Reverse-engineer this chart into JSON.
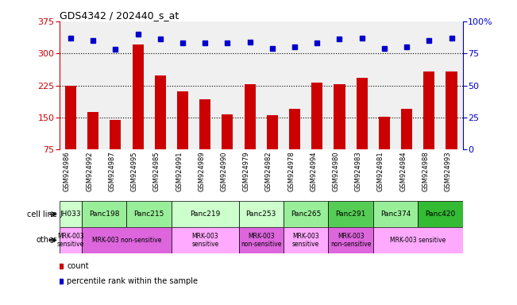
{
  "title": "GDS4342 / 202440_s_at",
  "samples": [
    "GSM924986",
    "GSM924992",
    "GSM924987",
    "GSM924995",
    "GSM924985",
    "GSM924991",
    "GSM924989",
    "GSM924990",
    "GSM924979",
    "GSM924982",
    "GSM924978",
    "GSM924994",
    "GSM924980",
    "GSM924983",
    "GSM924981",
    "GSM924984",
    "GSM924988",
    "GSM924993"
  ],
  "counts": [
    224,
    162,
    145,
    320,
    248,
    212,
    193,
    158,
    227,
    155,
    170,
    232,
    228,
    243,
    152,
    170,
    257,
    257
  ],
  "percentiles": [
    87,
    85,
    78,
    90,
    86,
    83,
    83,
    83,
    84,
    79,
    80,
    83,
    86,
    87,
    79,
    80,
    85,
    87
  ],
  "ylim_left": [
    75,
    375
  ],
  "ylim_right": [
    0,
    100
  ],
  "yticks_left": [
    75,
    150,
    225,
    300,
    375
  ],
  "yticks_right": [
    0,
    25,
    50,
    75,
    100
  ],
  "bar_color": "#cc0000",
  "dot_color": "#0000cc",
  "cell_lines": [
    {
      "label": "JH033",
      "start": 0,
      "end": 1,
      "color": "#ccffcc"
    },
    {
      "label": "Panc198",
      "start": 1,
      "end": 3,
      "color": "#99ee99"
    },
    {
      "label": "Panc215",
      "start": 3,
      "end": 5,
      "color": "#99ee99"
    },
    {
      "label": "Panc219",
      "start": 5,
      "end": 8,
      "color": "#ccffcc"
    },
    {
      "label": "Panc253",
      "start": 8,
      "end": 10,
      "color": "#ccffcc"
    },
    {
      "label": "Panc265",
      "start": 10,
      "end": 12,
      "color": "#99ee99"
    },
    {
      "label": "Panc291",
      "start": 12,
      "end": 14,
      "color": "#55cc55"
    },
    {
      "label": "Panc374",
      "start": 14,
      "end": 16,
      "color": "#99ee99"
    },
    {
      "label": "Panc420",
      "start": 16,
      "end": 18,
      "color": "#33bb33"
    }
  ],
  "other_rows": [
    {
      "label": "MRK-003\nsensitive",
      "start": 0,
      "end": 1,
      "color": "#ffaaff"
    },
    {
      "label": "MRK-003 non-sensitive",
      "start": 1,
      "end": 5,
      "color": "#dd66dd"
    },
    {
      "label": "MRK-003\nsensitive",
      "start": 5,
      "end": 8,
      "color": "#ffaaff"
    },
    {
      "label": "MRK-003\nnon-sensitive",
      "start": 8,
      "end": 10,
      "color": "#dd66dd"
    },
    {
      "label": "MRK-003\nsensitive",
      "start": 10,
      "end": 12,
      "color": "#ffaaff"
    },
    {
      "label": "MRK-003\nnon-sensitive",
      "start": 12,
      "end": 14,
      "color": "#dd66dd"
    },
    {
      "label": "MRK-003 sensitive",
      "start": 14,
      "end": 18,
      "color": "#ffaaff"
    }
  ],
  "legend_count_color": "#cc0000",
  "legend_dot_color": "#0000cc",
  "left_axis_color": "#cc0000",
  "right_axis_color": "#0000cc",
  "bg_color": "#f0f0f0"
}
